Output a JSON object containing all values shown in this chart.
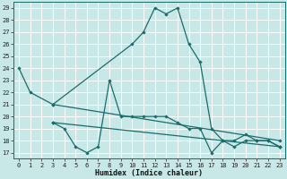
{
  "xlabel": "Humidex (Indice chaleur)",
  "bg_color": "#c8e8e8",
  "grid_color": "#ffffff",
  "line_color": "#1a6b6b",
  "xlim": [
    -0.5,
    23.5
  ],
  "ylim": [
    16.5,
    29.5
  ],
  "yticks": [
    17,
    18,
    19,
    20,
    21,
    22,
    23,
    24,
    25,
    26,
    27,
    28,
    29
  ],
  "xticks": [
    0,
    1,
    2,
    3,
    4,
    5,
    6,
    7,
    8,
    9,
    10,
    11,
    12,
    13,
    14,
    15,
    16,
    17,
    18,
    19,
    20,
    21,
    22,
    23
  ],
  "series1": {
    "x": [
      0,
      1,
      3,
      10,
      11,
      12,
      13,
      14,
      15,
      16,
      17,
      18,
      19,
      20,
      21,
      22,
      23
    ],
    "y": [
      24,
      22,
      21,
      26,
      27,
      29,
      28.5,
      29,
      26,
      24.5,
      19,
      18,
      18,
      18.5,
      18,
      18,
      17.5
    ]
  },
  "series2": {
    "x": [
      3,
      4,
      5,
      6,
      7,
      8,
      9,
      10,
      11,
      12,
      13,
      14,
      15,
      16,
      17,
      18,
      19,
      20,
      21,
      22,
      23
    ],
    "y": [
      19.5,
      19,
      17.5,
      17,
      17.5,
      23,
      20,
      20,
      20,
      20,
      20,
      19.5,
      19,
      19,
      17,
      18,
      17.5,
      18,
      18,
      18,
      17.5
    ]
  },
  "series3": {
    "x": [
      3,
      23
    ],
    "y": [
      21,
      18
    ]
  },
  "series4": {
    "x": [
      3,
      23
    ],
    "y": [
      19.5,
      17.5
    ]
  }
}
